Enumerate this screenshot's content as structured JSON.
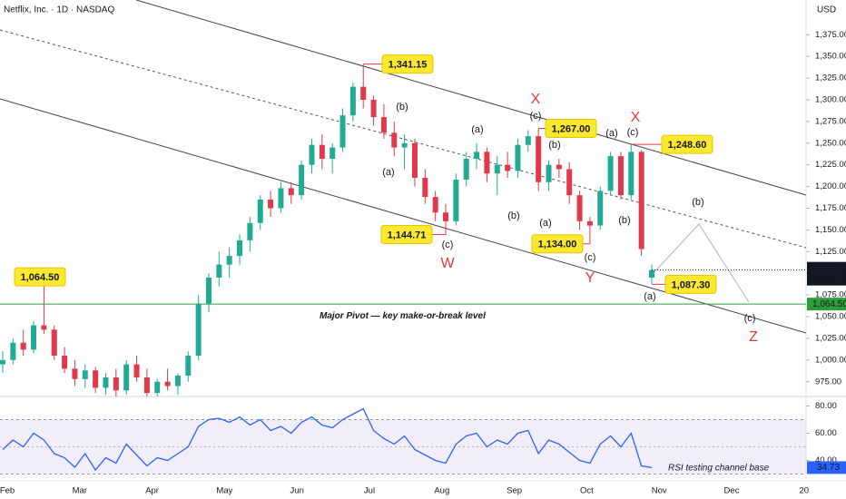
{
  "chart_data": [
    {
      "type": "candlestick",
      "title": "Netflix, Inc. · 1D · NASDAQ",
      "currency": "USD",
      "up_color": "#22ab94",
      "down_color": "#e0394a",
      "ylim": [
        958,
        1415
      ],
      "yticks": [
        {
          "value": 975,
          "label": "975.00"
        },
        {
          "value": 1000,
          "label": "1,000.00"
        },
        {
          "value": 1025,
          "label": "1,025.00"
        },
        {
          "value": 1050,
          "label": "1,050.00"
        },
        {
          "value": 1075,
          "label": "1,075.00"
        },
        {
          "value": 1100,
          "label": "1,100.00"
        },
        {
          "value": 1125,
          "label": "1,125.00"
        },
        {
          "value": 1150,
          "label": "1,150.00"
        },
        {
          "value": 1175,
          "label": "1,175.00"
        },
        {
          "value": 1200,
          "label": "1,200.00"
        },
        {
          "value": 1225,
          "label": "1,225.00"
        },
        {
          "value": 1250,
          "label": "1,250.00"
        },
        {
          "value": 1275,
          "label": "1,275.00"
        },
        {
          "value": 1300,
          "label": "1,300.00"
        },
        {
          "value": 1325,
          "label": "1,325.00"
        },
        {
          "value": 1350,
          "label": "1,350.00"
        },
        {
          "value": 1375,
          "label": "1,375.00"
        }
      ],
      "ohlc": [
        [
          995,
          1010,
          985,
          1000
        ],
        [
          1000,
          1025,
          995,
          1020
        ],
        [
          1020,
          1035,
          1005,
          1012
        ],
        [
          1012,
          1045,
          1008,
          1040
        ],
        [
          1040,
          1064.5,
          1030,
          1035
        ],
        [
          1035,
          1040,
          1000,
          1005
        ],
        [
          1005,
          1015,
          985,
          990
        ],
        [
          990,
          1000,
          970,
          978
        ],
        [
          978,
          995,
          968,
          988
        ],
        [
          988,
          992,
          962,
          968
        ],
        [
          968,
          985,
          960,
          980
        ],
        [
          980,
          990,
          958,
          965
        ],
        [
          965,
          1000,
          960,
          995
        ],
        [
          995,
          1005,
          975,
          980
        ],
        [
          980,
          990,
          958,
          962
        ],
        [
          962,
          978,
          958,
          975
        ],
        [
          975,
          990,
          965,
          970
        ],
        [
          970,
          985,
          960,
          982
        ],
        [
          982,
          1010,
          975,
          1005
        ],
        [
          1005,
          1075,
          1000,
          1065
        ],
        [
          1065,
          1100,
          1055,
          1095
        ],
        [
          1095,
          1125,
          1085,
          1110
        ],
        [
          1110,
          1130,
          1095,
          1120
        ],
        [
          1120,
          1145,
          1110,
          1138
        ],
        [
          1138,
          1165,
          1125,
          1158
        ],
        [
          1158,
          1190,
          1150,
          1185
        ],
        [
          1185,
          1195,
          1165,
          1175
        ],
        [
          1175,
          1205,
          1170,
          1198
        ],
        [
          1198,
          1205,
          1180,
          1190
        ],
        [
          1190,
          1230,
          1185,
          1225
        ],
        [
          1225,
          1255,
          1215,
          1248
        ],
        [
          1248,
          1260,
          1220,
          1232
        ],
        [
          1232,
          1250,
          1215,
          1245
        ],
        [
          1245,
          1290,
          1240,
          1282
        ],
        [
          1282,
          1320,
          1275,
          1315
        ],
        [
          1315,
          1341.15,
          1290,
          1300
        ],
        [
          1300,
          1305,
          1270,
          1280
        ],
        [
          1280,
          1295,
          1255,
          1262
        ],
        [
          1262,
          1275,
          1235,
          1245
        ],
        [
          1245,
          1260,
          1220,
          1250
        ],
        [
          1250,
          1255,
          1200,
          1210
        ],
        [
          1210,
          1220,
          1180,
          1188
        ],
        [
          1188,
          1195,
          1160,
          1170
        ],
        [
          1170,
          1180,
          1144.71,
          1160
        ],
        [
          1160,
          1215,
          1155,
          1208
        ],
        [
          1208,
          1240,
          1200,
          1232
        ],
        [
          1232,
          1250,
          1220,
          1240
        ],
        [
          1240,
          1245,
          1205,
          1215
        ],
        [
          1215,
          1235,
          1190,
          1225
        ],
        [
          1225,
          1240,
          1210,
          1218
        ],
        [
          1218,
          1255,
          1210,
          1248
        ],
        [
          1248,
          1265,
          1240,
          1258
        ],
        [
          1258,
          1267,
          1195,
          1205
        ],
        [
          1205,
          1230,
          1195,
          1225
        ],
        [
          1225,
          1232,
          1210,
          1220
        ],
        [
          1220,
          1228,
          1180,
          1190
        ],
        [
          1190,
          1195,
          1150,
          1160
        ],
        [
          1160,
          1165,
          1134,
          1155
        ],
        [
          1155,
          1200,
          1150,
          1195
        ],
        [
          1195,
          1240,
          1190,
          1235
        ],
        [
          1235,
          1240,
          1185,
          1190
        ],
        [
          1190,
          1248.6,
          1185,
          1240
        ],
        [
          1240,
          1242,
          1120,
          1128
        ],
        [
          1095,
          1110,
          1087.3,
          1103.7
        ]
      ],
      "pivot": {
        "value": 1064.5,
        "label": "1,064.50",
        "text": "Major Pivot — key make-or-break level",
        "color": "#2e9e3a"
      },
      "last_price": {
        "value": 1103.7,
        "label": "1,103.70"
      },
      "countdown": "02:31:38",
      "callouts": [
        {
          "value": 1341.15,
          "label": "1,341.15"
        },
        {
          "value": 1267,
          "label": "1,267.00"
        },
        {
          "value": 1248.6,
          "label": "1,248.60"
        },
        {
          "value": 1144.71,
          "label": "1,144.71"
        },
        {
          "value": 1134,
          "label": "1,134.00"
        },
        {
          "value": 1087.3,
          "label": "1,087.30"
        },
        {
          "value": 1064.5,
          "label": "1,064.50"
        }
      ],
      "wave_labels": [
        "(b)",
        "(a)",
        "(c)",
        "W",
        "X",
        "(c)",
        "(a)",
        "(b)",
        "(b)",
        "(a)",
        "(c)",
        "Y",
        "X",
        "(c)",
        "(a)",
        "(b)",
        "(a)",
        "(b)",
        "(c)",
        "Z"
      ]
    },
    {
      "type": "line",
      "color": "#2962ff",
      "ylim": [
        25,
        85
      ],
      "yticks": [
        {
          "value": 40,
          "label": "40.00"
        },
        {
          "value": 60,
          "label": "60.00"
        },
        {
          "value": 80,
          "label": "80.00"
        }
      ],
      "band": [
        30,
        70
      ],
      "midline": 50,
      "values": [
        48,
        55,
        50,
        60,
        55,
        45,
        42,
        35,
        45,
        33,
        42,
        38,
        52,
        44,
        36,
        42,
        40,
        45,
        50,
        65,
        70,
        71,
        68,
        72,
        66,
        70,
        62,
        65,
        60,
        68,
        72,
        66,
        64,
        70,
        74,
        78,
        62,
        56,
        52,
        58,
        48,
        44,
        40,
        38,
        52,
        58,
        60,
        50,
        55,
        52,
        60,
        62,
        45,
        55,
        52,
        46,
        40,
        38,
        52,
        58,
        50,
        60,
        36,
        34.73
      ],
      "note": "RSI testing channel base",
      "months": [
        "Feb",
        "Mar",
        "Apr",
        "May",
        "Jun",
        "Jul",
        "Aug",
        "Sep",
        "Oct",
        "Nov",
        "Dec",
        "20"
      ]
    }
  ]
}
